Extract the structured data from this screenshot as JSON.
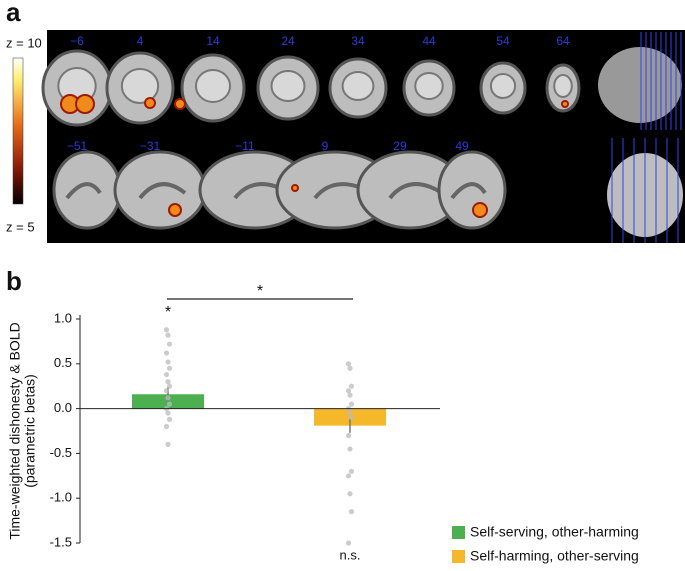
{
  "figure": {
    "panel_a": "a",
    "panel_b": "b",
    "colorbar_max": "z = 10",
    "colorbar_min": "z = 5",
    "slices_top": [
      "−6",
      "4",
      "14",
      "24",
      "34",
      "44",
      "54",
      "64"
    ],
    "slices_bottom": [
      "−51",
      "−31",
      "−11",
      "9",
      "29",
      "49"
    ]
  },
  "chart_data": {
    "type": "bar",
    "ylabel": [
      "Time-weighted dishonesty & BOLD",
      "(parametric betas)"
    ],
    "ylim": [
      -1.5,
      1.0
    ],
    "yticks": [
      {
        "value": -1.5,
        "label": "-1.5"
      },
      {
        "value": -1.0,
        "label": "-1.0"
      },
      -0.5,
      {
        "value": 0.0,
        "label": "0.0"
      },
      0.5,
      {
        "value": 1.0,
        "label": "1.0"
      }
    ],
    "series": [
      {
        "name": "Self-serving, other-harming",
        "color": "#4caf50",
        "values": [
          0.16
        ],
        "errors": [
          0.08
        ],
        "annotation": "*",
        "points": [
          0.88,
          0.82,
          0.72,
          0.62,
          0.52,
          0.45,
          0.38,
          0.3,
          0.25,
          0.2,
          0.12,
          0.05,
          0.0,
          -0.05,
          -0.12,
          -0.2,
          -0.4
        ]
      },
      {
        "name": "Self-harming, other-serving",
        "color": "#f5b82a",
        "values": [
          -0.19
        ],
        "errors": [
          0.08
        ],
        "annotation": "n.s.",
        "points": [
          0.5,
          0.45,
          0.25,
          0.2,
          0.15,
          0.05,
          0.0,
          -0.05,
          -0.1,
          -0.3,
          -0.45,
          -0.7,
          -0.75,
          -0.95,
          -1.15,
          -1.5
        ]
      }
    ],
    "comparison": "*",
    "legend": "lower right"
  }
}
